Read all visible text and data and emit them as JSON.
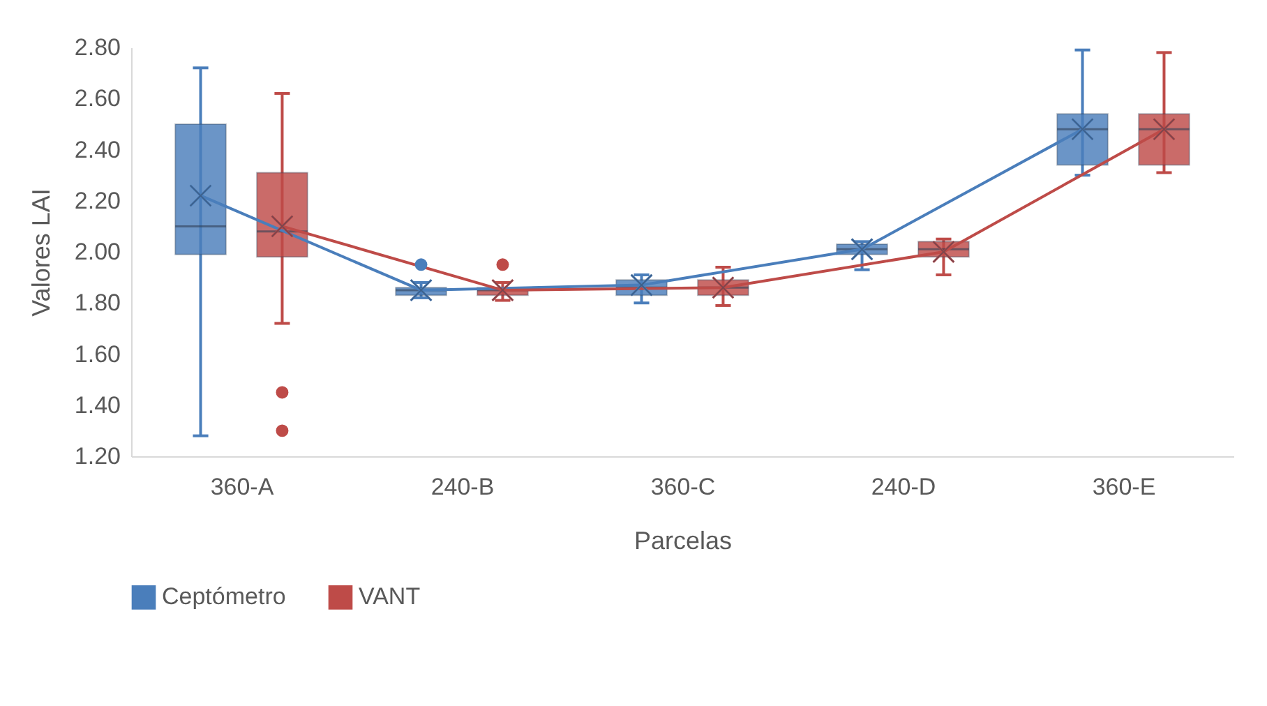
{
  "chart_data": {
    "type": "box",
    "xlabel": "Parcelas",
    "ylabel": "Valores LAI",
    "categories": [
      "360-A",
      "240-B",
      "360-C",
      "240-D",
      "360-E"
    ],
    "ylim": [
      1.2,
      2.8
    ],
    "yticks": [
      {
        "value": 1.2,
        "label": "1.20"
      },
      {
        "value": 1.4,
        "label": "1.40"
      },
      {
        "value": 1.6,
        "label": "1.60"
      },
      {
        "value": 1.8,
        "label": "1.80"
      },
      {
        "value": 2.0,
        "label": "2.00"
      },
      {
        "value": 2.2,
        "label": "2.20"
      },
      {
        "value": 2.4,
        "label": "2.40"
      },
      {
        "value": 2.6,
        "label": "2.60"
      },
      {
        "value": 2.8,
        "label": "2.80"
      }
    ],
    "grid": false,
    "legend": "bottom",
    "series": [
      {
        "name": "Ceptómetro",
        "color": "#4a7ebb",
        "boxes": [
          {
            "low": 1.28,
            "q1": 1.99,
            "median": 2.1,
            "q3": 2.5,
            "high": 2.72,
            "mean": 2.22
          },
          {
            "low": 1.82,
            "q1": 1.83,
            "median": 1.85,
            "q3": 1.86,
            "high": 1.88,
            "mean": 1.85,
            "outliers": [
              1.95
            ]
          },
          {
            "low": 1.8,
            "q1": 1.83,
            "median": 1.86,
            "q3": 1.89,
            "high": 1.91,
            "mean": 1.87
          },
          {
            "low": 1.93,
            "q1": 1.99,
            "median": 2.01,
            "q3": 2.03,
            "high": 2.04,
            "mean": 2.01
          },
          {
            "low": 2.3,
            "q1": 2.34,
            "median": 2.48,
            "q3": 2.54,
            "high": 2.79,
            "mean": 2.48
          }
        ]
      },
      {
        "name": "VANT",
        "color": "#be4b48",
        "boxes": [
          {
            "low": 1.72,
            "q1": 1.98,
            "median": 2.08,
            "q3": 2.31,
            "high": 2.62,
            "mean": 2.1,
            "outliers": [
              1.45,
              1.3
            ]
          },
          {
            "low": 1.81,
            "q1": 1.83,
            "median": 1.85,
            "q3": 1.86,
            "high": 1.88,
            "mean": 1.85,
            "outliers": [
              1.95
            ]
          },
          {
            "low": 1.79,
            "q1": 1.83,
            "median": 1.86,
            "q3": 1.89,
            "high": 1.94,
            "mean": 1.86
          },
          {
            "low": 1.91,
            "q1": 1.98,
            "median": 2.01,
            "q3": 2.04,
            "high": 2.05,
            "mean": 2.0
          },
          {
            "low": 2.31,
            "q1": 2.34,
            "median": 2.48,
            "q3": 2.54,
            "high": 2.78,
            "mean": 2.48
          }
        ]
      },
      {
        "type": "line",
        "color": "#4a7ebb",
        "line_style": "solid",
        "values": [
          2.22,
          1.85,
          1.87,
          2.01,
          2.48
        ]
      },
      {
        "type": "line",
        "color": "#be4b48",
        "line_style": "solid",
        "values": [
          2.1,
          1.85,
          1.86,
          2.0,
          2.48
        ]
      }
    ]
  }
}
